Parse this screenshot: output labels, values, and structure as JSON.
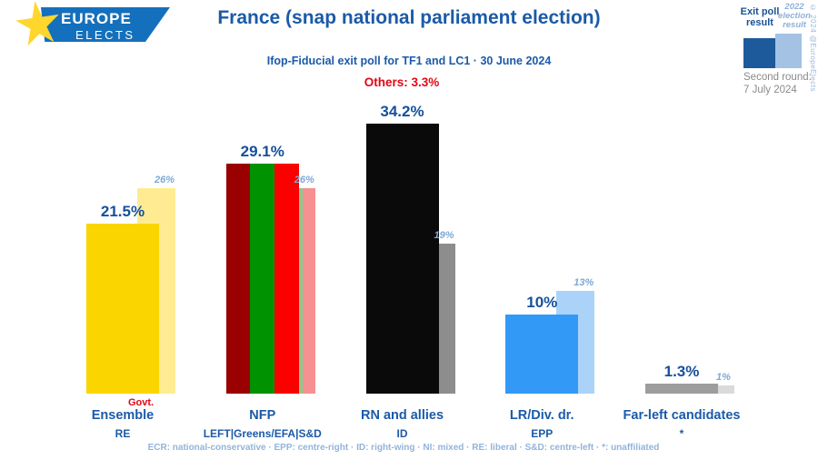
{
  "brand": {
    "name_line1": "EUROPE",
    "name_line2": "ELECTS",
    "copyright": "© 2024 @EuropeElects"
  },
  "header": {
    "title": "France (snap national parliament election)",
    "subtitle": "Ifop-Fiducial exit poll for TF1 and LC1 · 30 June 2024",
    "others_label": "Others: 3.3%"
  },
  "legend": {
    "exit_poll_label": "Exit poll result",
    "previous_label": "2022 election result",
    "second_round_line1": "Second round:",
    "second_round_line2": "7 July 2024",
    "dark_bar_color": "#1d5a9c",
    "light_bar_color": "#a3c2e4"
  },
  "chart_data": {
    "type": "bar",
    "unit": "%",
    "ylim": [
      0,
      35
    ],
    "grid": false,
    "series_names": [
      "Exit poll result",
      "2022 election result"
    ],
    "categories": [
      "Ensemble",
      "NFP",
      "RN and allies",
      "LR/Div. dr.",
      "Far-left candidates"
    ],
    "others": {
      "label": "Others: 3.3%",
      "value": 3.3
    },
    "groups": [
      {
        "party": "Ensemble",
        "eu_group": "RE",
        "note": "Govt.",
        "exit_poll_value": 21.5,
        "exit_poll_label": "21.5%",
        "prev_value": 26,
        "prev_label": "26%",
        "bar_colors": [
          "#fbd500"
        ],
        "prev_bar_colors": [
          "#ffec92"
        ]
      },
      {
        "party": "NFP",
        "eu_group": "LEFT|Greens/EFA|S&D",
        "note": "",
        "exit_poll_value": 29.1,
        "exit_poll_label": "29.1%",
        "prev_value": 26,
        "prev_label": "26%",
        "bar_colors": [
          "#9b0000",
          "#009200",
          "#fc0000"
        ],
        "prev_bar_colors": [
          "#cf9f9f",
          "#8dc98d",
          "#f79090"
        ]
      },
      {
        "party": "RN and allies",
        "eu_group": "ID",
        "note": "",
        "exit_poll_value": 34.2,
        "exit_poll_label": "34.2%",
        "prev_value": 19,
        "prev_label": "19%",
        "bar_colors": [
          "#0a0a0a"
        ],
        "prev_bar_colors": [
          "#8d8d8d"
        ]
      },
      {
        "party": "LR/Div. dr.",
        "eu_group": "EPP",
        "note": "",
        "exit_poll_value": 10,
        "exit_poll_label": "10%",
        "prev_value": 13,
        "prev_label": "13%",
        "bar_colors": [
          "#3399f6"
        ],
        "prev_bar_colors": [
          "#abd3f9"
        ]
      },
      {
        "party": "Far-left candidates",
        "eu_group": "*",
        "note": "",
        "exit_poll_value": 1.3,
        "exit_poll_label": "1.3%",
        "prev_value": 1,
        "prev_label": "1%",
        "bar_colors": [
          "#9d9d9d"
        ],
        "prev_bar_colors": [
          "#dadada"
        ]
      }
    ]
  },
  "footer": {
    "abbreviations": "ECR: national-conservative · EPP: centre-right · ID: right-wing · NI: mixed · RE: liberal · S&D: centre-left · *: unaffiliated"
  },
  "colors": {
    "title_blue": "#1b5aa8",
    "value_blue": "#15509b",
    "prev_text_blue": "#7fa8d4",
    "accent_red": "#e30613",
    "footer_blue": "#93b3da",
    "gray_text": "#8a8a8a",
    "brand_banner_blue": "#1470bd",
    "star_yellow": "#ffd62c"
  }
}
